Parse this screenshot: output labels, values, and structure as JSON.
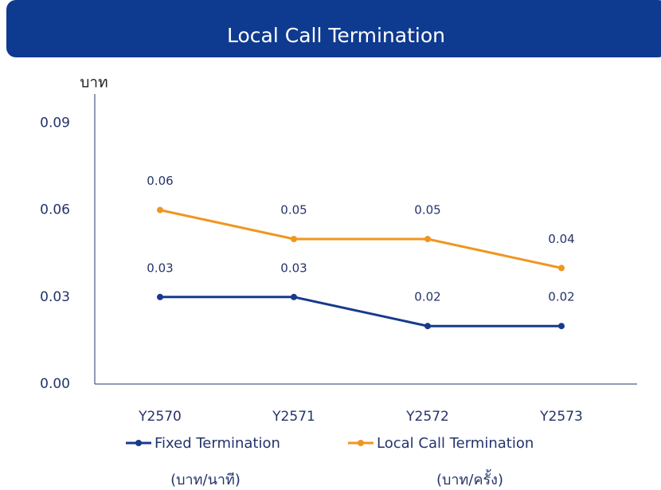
{
  "chart_data": {
    "type": "line",
    "title": "Local Call Termination",
    "y_axis_label": "บาท",
    "categories": [
      "Y2570",
      "Y2571",
      "Y2572",
      "Y2573"
    ],
    "series": [
      {
        "name": "Fixed Termination",
        "unit_label": "(บาท/นาที)",
        "color": "#173a8c",
        "values": [
          0.03,
          0.03,
          0.02,
          0.02
        ]
      },
      {
        "name": "Local Call Termination",
        "unit_label": "(บาท/ครั้ง)",
        "color": "#ef9621",
        "values": [
          0.06,
          0.05,
          0.05,
          0.04
        ]
      }
    ],
    "ylim": [
      0,
      0.1
    ],
    "yticks": [
      {
        "value": 0,
        "label": "0.00"
      },
      0.03,
      0.06,
      0.09
    ],
    "grid": false,
    "legend": "bottom"
  }
}
